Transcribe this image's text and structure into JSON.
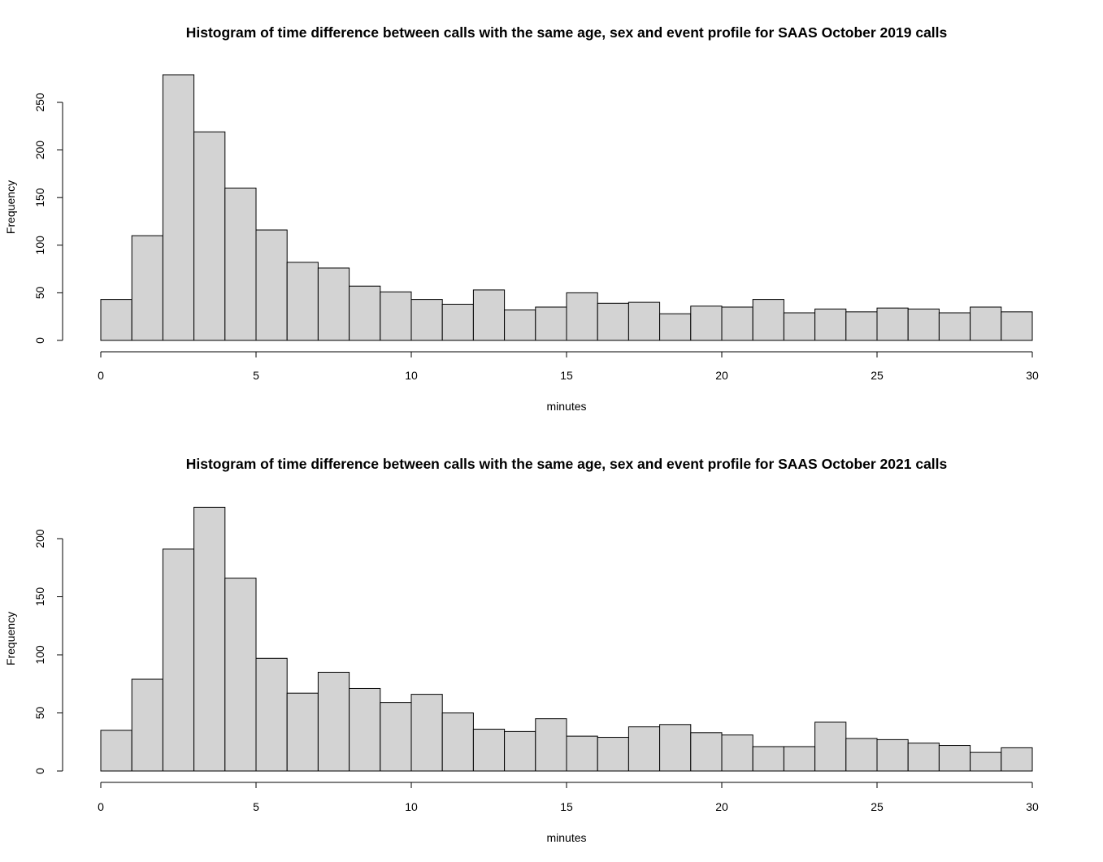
{
  "chart_data": [
    {
      "type": "bar",
      "title": "Histogram of time difference between calls with the same age, sex and event profile for SAAS October 2019 calls",
      "xlabel": "minutes",
      "ylabel": "Frequency",
      "bin_edges": [
        0,
        1,
        2,
        3,
        4,
        5,
        6,
        7,
        8,
        9,
        10,
        11,
        12,
        13,
        14,
        15,
        16,
        17,
        18,
        19,
        20,
        21,
        22,
        23,
        24,
        25,
        26,
        27,
        28,
        29,
        30
      ],
      "values": [
        43,
        110,
        279,
        219,
        160,
        116,
        82,
        76,
        57,
        51,
        43,
        38,
        53,
        32,
        35,
        50,
        39,
        40,
        28,
        36,
        35,
        43,
        29,
        33,
        30,
        34,
        33,
        29,
        35,
        30
      ],
      "xlim": [
        0,
        30
      ],
      "ylim": [
        0,
        250
      ],
      "x_ticks": [
        "0",
        "5",
        "10",
        "15",
        "20",
        "25",
        "30"
      ],
      "y_ticks": [
        "0",
        "50",
        "100",
        "150",
        "200",
        "250"
      ],
      "bar_color": "#d3d3d3"
    },
    {
      "type": "bar",
      "title": "Histogram of time difference between calls with the same age, sex and event profile for SAAS October 2021 calls",
      "xlabel": "minutes",
      "ylabel": "Frequency",
      "bin_edges": [
        0,
        1,
        2,
        3,
        4,
        5,
        6,
        7,
        8,
        9,
        10,
        11,
        12,
        13,
        14,
        15,
        16,
        17,
        18,
        19,
        20,
        21,
        22,
        23,
        24,
        25,
        26,
        27,
        28,
        29,
        30
      ],
      "values": [
        35,
        79,
        191,
        227,
        166,
        97,
        67,
        85,
        71,
        59,
        66,
        50,
        36,
        34,
        45,
        30,
        29,
        38,
        40,
        33,
        31,
        21,
        21,
        42,
        28,
        27,
        24,
        22,
        16,
        20
      ],
      "xlim": [
        0,
        30
      ],
      "ylim": [
        0,
        200
      ],
      "x_ticks": [
        "0",
        "5",
        "10",
        "15",
        "20",
        "25",
        "30"
      ],
      "y_ticks": [
        "0",
        "50",
        "100",
        "150",
        "200"
      ],
      "bar_color": "#d3d3d3"
    }
  ]
}
